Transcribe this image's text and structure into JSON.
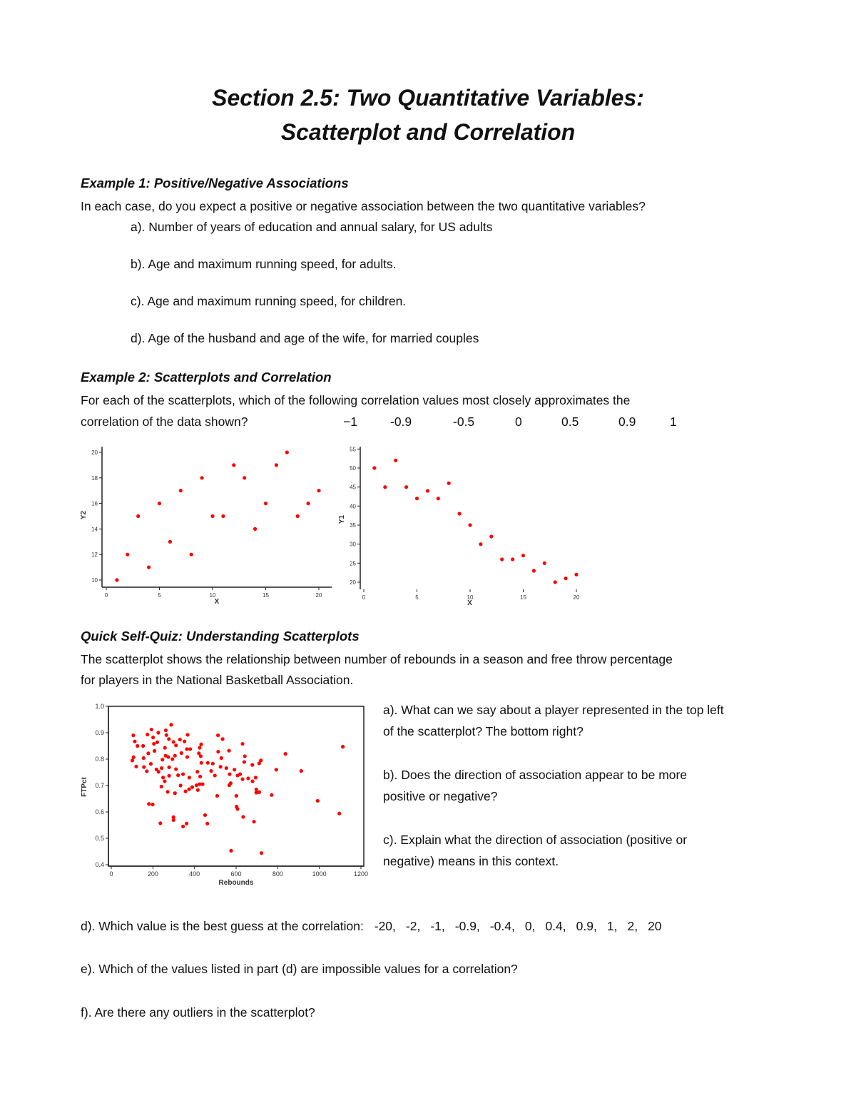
{
  "title": {
    "line1": "Section 2.5:  Two Quantitative Variables:",
    "line2": "Scatterplot and Correlation"
  },
  "example1": {
    "heading": "Example 1:  Positive/Negative Associations",
    "prompt": "In each case, do you expect a positive or negative association between the two quantitative variables?",
    "items": [
      "a).  Number of years of education and annual salary, for US adults",
      "b).  Age and maximum running speed, for adults.",
      "c).  Age and maximum running speed, for children.",
      "d).  Age of the husband and age of the wife, for married couples"
    ]
  },
  "example2": {
    "heading": "Example 2:  Scatterplots and Correlation",
    "prompt_line1": "For each of the scatterplots, which of the following correlation values most closely approximates the",
    "prompt_line2": "correlation of the data shown?",
    "choices": [
      "−1",
      "-0.9",
      "-0.5",
      "0",
      "0.5",
      "0.9",
      "1"
    ]
  },
  "quiz": {
    "heading": "Quick Self-Quiz:  Understanding Scatterplots",
    "intro_line1": "The scatterplot shows the relationship between number of rebounds in a season and free throw percentage",
    "intro_line2": "for players in the National Basketball Association.",
    "a_line1": "a).  What can we say about a player represented in the top left",
    "a_line2": "of the scatterplot?  The bottom right?",
    "b_line1": "b).  Does the direction of association appear to be more",
    "b_line2": "positive or negative?",
    "c_line1": "c).  Explain what the direction of association (positive or",
    "c_line2": "negative) means in this context.",
    "d_text": "d).  Which value is the best guess at the correlation:",
    "d_values": [
      "-20,",
      "-2,",
      "-1,",
      "-0.9,",
      "-0.4,",
      "0,",
      "0.4,",
      "0.9,",
      "1,",
      "2,",
      "20"
    ],
    "e_text": "e).   Which of the values listed in part (d) are impossible values for a correlation?",
    "f_text": "f).  Are there any outliers in the scatterplot?"
  },
  "chart_data": [
    {
      "type": "scatter",
      "xlabel": "X",
      "ylabel": "Y2",
      "xlim": [
        0,
        21
      ],
      "ylim": [
        9.5,
        20.5
      ],
      "xticks": [
        "0",
        "5",
        "10",
        "15",
        "20"
      ],
      "yticks": [
        "10",
        "12",
        "14",
        "16",
        "18",
        "20"
      ],
      "color": "#ff0000",
      "x": [
        1,
        2,
        3,
        4,
        5,
        6,
        7,
        8,
        9,
        10,
        11,
        12,
        13,
        14,
        15,
        16,
        17,
        18,
        19,
        20
      ],
      "y": [
        10,
        12,
        15,
        11,
        16,
        13,
        17,
        12,
        18,
        15,
        15,
        19,
        18,
        14,
        16,
        19,
        20,
        15,
        16,
        17
      ]
    },
    {
      "type": "scatter",
      "xlabel": "X",
      "ylabel": "Y1",
      "xlim": [
        0,
        20
      ],
      "ylim": [
        19,
        55
      ],
      "xticks": [
        "0",
        "5",
        "10",
        "15",
        "20"
      ],
      "yticks": [
        "20",
        "25",
        "30",
        "35",
        "40",
        "45",
        "50",
        "55"
      ],
      "color": "#ff0000",
      "x": [
        1,
        2,
        3,
        4,
        5,
        6,
        7,
        8,
        9,
        10,
        11,
        12,
        13,
        14,
        15,
        16,
        17,
        18,
        19,
        20
      ],
      "y": [
        50,
        45,
        52,
        45,
        42,
        44,
        42,
        46,
        38,
        35,
        30,
        32,
        26,
        26,
        27,
        23,
        25,
        20,
        21,
        22
      ]
    },
    {
      "type": "scatter",
      "xlabel": "Rebounds",
      "ylabel": "FTPct",
      "xlim": [
        0,
        1200
      ],
      "ylim": [
        0.4,
        1.0
      ],
      "xticks": [
        "0",
        "200",
        "400",
        "600",
        "800",
        "1000",
        "1200"
      ],
      "yticks": [
        "0.4",
        "0.5",
        "0.6",
        "0.7",
        "0.8",
        "0.9",
        "1.0"
      ],
      "color": "#ff0000",
      "points": [
        [
          106,
          0.89
        ],
        [
          113,
          0.867
        ],
        [
          107,
          0.807
        ],
        [
          101,
          0.795
        ],
        [
          120,
          0.772
        ],
        [
          126,
          0.85
        ],
        [
          153,
          0.85
        ],
        [
          155,
          0.804
        ],
        [
          157,
          0.77
        ],
        [
          171,
          0.754
        ],
        [
          174,
          0.893
        ],
        [
          193,
          0.912
        ],
        [
          201,
          0.882
        ],
        [
          178,
          0.822
        ],
        [
          190,
          0.782
        ],
        [
          181,
          0.63
        ],
        [
          199,
          0.628
        ],
        [
          226,
          0.9
        ],
        [
          221,
          0.864
        ],
        [
          205,
          0.858
        ],
        [
          208,
          0.831
        ],
        [
          217,
          0.761
        ],
        [
          227,
          0.752
        ],
        [
          242,
          0.766
        ],
        [
          241,
          0.696
        ],
        [
          236,
          0.557
        ],
        [
          249,
          0.73
        ],
        [
          257,
          0.716
        ],
        [
          262,
          0.909
        ],
        [
          265,
          0.891
        ],
        [
          277,
          0.876
        ],
        [
          258,
          0.843
        ],
        [
          261,
          0.813
        ],
        [
          274,
          0.808
        ],
        [
          246,
          0.798
        ],
        [
          278,
          0.769
        ],
        [
          278,
          0.737
        ],
        [
          271,
          0.676
        ],
        [
          288,
          0.93
        ],
        [
          294,
          0.8
        ],
        [
          299,
          0.865
        ],
        [
          311,
          0.852
        ],
        [
          306,
          0.813
        ],
        [
          311,
          0.762
        ],
        [
          321,
          0.739
        ],
        [
          330,
          0.874
        ],
        [
          337,
          0.823
        ],
        [
          333,
          0.7
        ],
        [
          306,
          0.671
        ],
        [
          299,
          0.58
        ],
        [
          299,
          0.569
        ],
        [
          345,
          0.545
        ],
        [
          362,
          0.556
        ],
        [
          352,
          0.867
        ],
        [
          367,
          0.892
        ],
        [
          363,
          0.838
        ],
        [
          379,
          0.838
        ],
        [
          365,
          0.808
        ],
        [
          345,
          0.743
        ],
        [
          375,
          0.73
        ],
        [
          357,
          0.678
        ],
        [
          374,
          0.686
        ],
        [
          389,
          0.694
        ],
        [
          410,
          0.701
        ],
        [
          414,
          0.752
        ],
        [
          416,
          0.683
        ],
        [
          421,
          0.822
        ],
        [
          425,
          0.843
        ],
        [
          432,
          0.856
        ],
        [
          430,
          0.811
        ],
        [
          433,
          0.786
        ],
        [
          427,
          0.734
        ],
        [
          425,
          0.705
        ],
        [
          439,
          0.705
        ],
        [
          451,
          0.588
        ],
        [
          462,
          0.556
        ],
        [
          464,
          0.786
        ],
        [
          480,
          0.755
        ],
        [
          488,
          0.783
        ],
        [
          498,
          0.738
        ],
        [
          509,
          0.661
        ],
        [
          513,
          0.89
        ],
        [
          514,
          0.828
        ],
        [
          525,
          0.771
        ],
        [
          529,
          0.804
        ],
        [
          535,
          0.876
        ],
        [
          553,
          0.766
        ],
        [
          566,
          0.832
        ],
        [
          569,
          0.743
        ],
        [
          567,
          0.701
        ],
        [
          574,
          0.709
        ],
        [
          576,
          0.453
        ],
        [
          592,
          0.76
        ],
        [
          601,
          0.661
        ],
        [
          602,
          0.62
        ],
        [
          607,
          0.611
        ],
        [
          607,
          0.738
        ],
        [
          619,
          0.743
        ],
        [
          631,
          0.858
        ],
        [
          631,
          0.724
        ],
        [
          634,
          0.581
        ],
        [
          639,
          0.789
        ],
        [
          642,
          0.811
        ],
        [
          658,
          0.727
        ],
        [
          678,
          0.778
        ],
        [
          679,
          0.716
        ],
        [
          686,
          0.563
        ],
        [
          694,
          0.73
        ],
        [
          697,
          0.685
        ],
        [
          697,
          0.673
        ],
        [
          711,
          0.675
        ],
        [
          711,
          0.784
        ],
        [
          719,
          0.795
        ],
        [
          722,
          0.444
        ],
        [
          771,
          0.664
        ],
        [
          793,
          0.76
        ],
        [
          837,
          0.82
        ],
        [
          913,
          0.755
        ],
        [
          992,
          0.642
        ],
        [
          1096,
          0.594
        ],
        [
          1113,
          0.847
        ]
      ]
    }
  ]
}
